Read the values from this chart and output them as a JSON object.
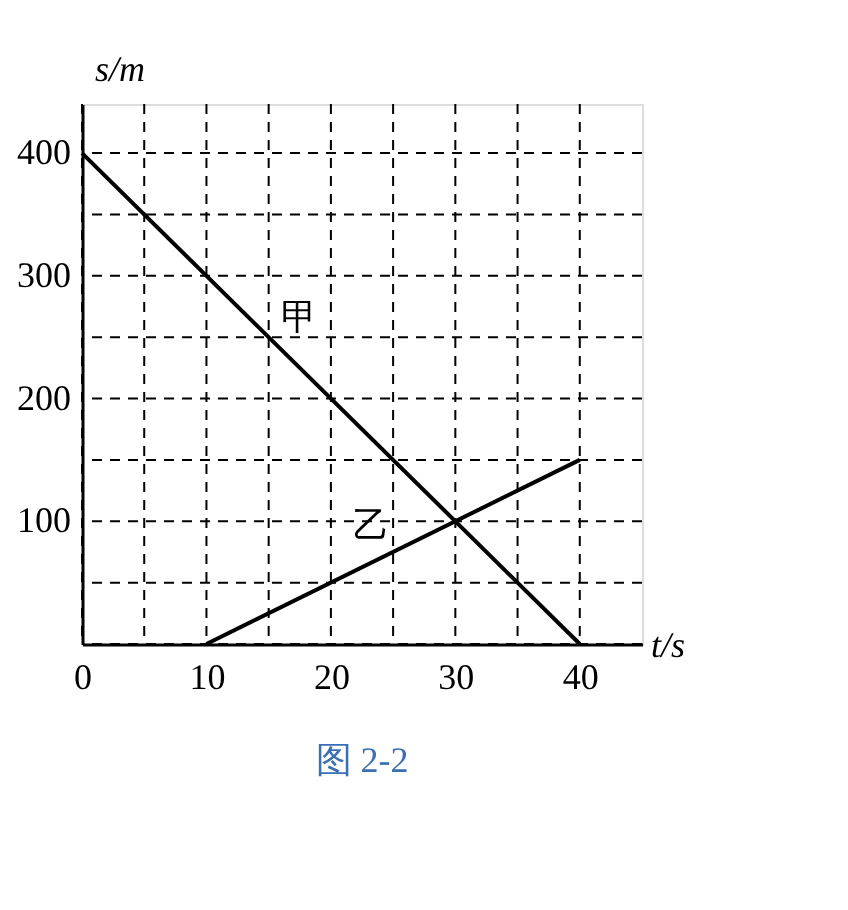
{
  "chart_data": {
    "type": "line",
    "xlabel": "t/s",
    "ylabel": "s/m",
    "annotations": [
      "图 2-2"
    ],
    "xlim": [
      0,
      45
    ],
    "ylim": [
      0,
      440
    ],
    "xticks": [
      0,
      {
        "value": 5,
        "label": null
      },
      10,
      {
        "value": 15,
        "label": null
      },
      20,
      {
        "value": 25,
        "label": null
      },
      30,
      {
        "value": 35,
        "label": null
      },
      40
    ],
    "yticks": [
      {
        "value": 0,
        "label": null
      },
      {
        "value": 50,
        "label": null
      },
      100,
      {
        "value": 150,
        "label": null
      },
      200,
      {
        "value": 250,
        "label": null
      },
      300,
      {
        "value": 350,
        "label": null
      },
      400
    ],
    "grid": true,
    "line_style": "solid",
    "marker": "none",
    "series": [
      {
        "name": "甲",
        "color": "#000000",
        "x": [
          0,
          40
        ],
        "values": [
          400,
          0
        ]
      },
      {
        "name": "乙",
        "color": "#000000",
        "x": [
          10,
          40
        ],
        "values": [
          0,
          150
        ]
      }
    ]
  }
}
